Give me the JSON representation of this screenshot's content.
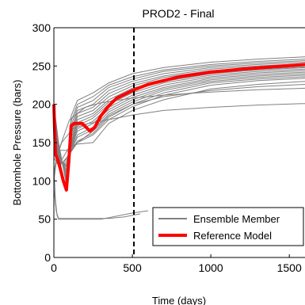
{
  "chart_data": {
    "type": "line",
    "title": "PROD2 - Final",
    "xlabel": "Time (days)",
    "ylabel": "Bottomhole Pressure  (bars)",
    "xlim": [
      0,
      1600
    ],
    "ylim": [
      0,
      300
    ],
    "x_ticks": [
      0,
      500,
      1000,
      1500
    ],
    "y_ticks": [
      0,
      50,
      100,
      150,
      200,
      250,
      300
    ],
    "x_tick_labels": [
      "0",
      "500",
      "1000",
      "1500"
    ],
    "y_tick_labels": [
      "0",
      "50",
      "100",
      "150",
      "200",
      "250",
      "300"
    ],
    "vline_x": 510,
    "legend": {
      "position": "bottom-right",
      "entries": [
        {
          "label": "Ensemble Member",
          "color": "#808080"
        },
        {
          "label": "Reference Model",
          "color": "#ff0000"
        }
      ]
    },
    "reference_model": {
      "name": "Reference Model",
      "color": "#ff0000",
      "x": [
        0,
        10,
        30,
        60,
        80,
        95,
        110,
        130,
        180,
        230,
        260,
        300,
        350,
        400,
        500,
        600,
        800,
        1000,
        1200,
        1400,
        1600
      ],
      "y": [
        200,
        135,
        125,
        100,
        88,
        125,
        172,
        175,
        175,
        165,
        170,
        185,
        198,
        208,
        218,
        226,
        236,
        242,
        246,
        249,
        252
      ]
    },
    "ensemble_members": {
      "color": "#808080",
      "series": [
        {
          "x": [
            0,
            30,
            80,
            110,
            150,
            250,
            350,
            500,
            700,
            1000,
            1300,
            1600
          ],
          "y": [
            200,
            150,
            95,
            185,
            205,
            215,
            228,
            240,
            248,
            255,
            259,
            262
          ]
        },
        {
          "x": [
            0,
            30,
            80,
            110,
            150,
            250,
            350,
            500,
            700,
            1000,
            1300,
            1600
          ],
          "y": [
            195,
            148,
            98,
            178,
            200,
            210,
            225,
            236,
            245,
            252,
            256,
            259
          ]
        },
        {
          "x": [
            0,
            30,
            80,
            110,
            150,
            250,
            350,
            500,
            700,
            1000,
            1300,
            1600
          ],
          "y": [
            190,
            145,
            100,
            172,
            196,
            205,
            222,
            233,
            243,
            250,
            254,
            257
          ]
        },
        {
          "x": [
            0,
            30,
            80,
            110,
            150,
            250,
            350,
            500,
            700,
            1000,
            1300,
            1600
          ],
          "y": [
            185,
            142,
            102,
            165,
            192,
            200,
            218,
            230,
            240,
            248,
            252,
            255
          ]
        },
        {
          "x": [
            0,
            30,
            80,
            110,
            150,
            250,
            350,
            500,
            700,
            1000,
            1300,
            1600
          ],
          "y": [
            180,
            140,
            104,
            160,
            188,
            196,
            214,
            227,
            237,
            246,
            250,
            253
          ]
        },
        {
          "x": [
            0,
            30,
            80,
            110,
            150,
            250,
            350,
            500,
            700,
            1000,
            1300,
            1600
          ],
          "y": [
            178,
            138,
            106,
            155,
            184,
            192,
            210,
            224,
            235,
            244,
            248,
            251
          ]
        },
        {
          "x": [
            0,
            30,
            80,
            110,
            150,
            250,
            350,
            500,
            700,
            1000,
            1300,
            1600
          ],
          "y": [
            175,
            136,
            110,
            150,
            180,
            188,
            206,
            221,
            232,
            242,
            246,
            249
          ]
        },
        {
          "x": [
            0,
            30,
            80,
            110,
            150,
            250,
            350,
            500,
            700,
            1000,
            1300,
            1600
          ],
          "y": [
            172,
            134,
            112,
            148,
            176,
            185,
            203,
            218,
            230,
            240,
            245,
            248
          ]
        },
        {
          "x": [
            0,
            30,
            80,
            110,
            150,
            250,
            350,
            500,
            700,
            1000,
            1300,
            1600
          ],
          "y": [
            170,
            132,
            115,
            146,
            172,
            182,
            200,
            215,
            228,
            238,
            243,
            246
          ]
        },
        {
          "x": [
            0,
            30,
            80,
            110,
            150,
            250,
            350,
            500,
            700,
            1000,
            1300,
            1600
          ],
          "y": [
            165,
            130,
            118,
            145,
            168,
            178,
            196,
            212,
            225,
            236,
            241,
            244
          ]
        },
        {
          "x": [
            0,
            30,
            80,
            110,
            150,
            250,
            350,
            500,
            700,
            1000,
            1300,
            1600
          ],
          "y": [
            160,
            128,
            120,
            143,
            165,
            175,
            193,
            209,
            222,
            234,
            239,
            242
          ]
        },
        {
          "x": [
            0,
            30,
            80,
            110,
            150,
            250,
            350,
            500,
            700,
            1000,
            1300,
            1600
          ],
          "y": [
            155,
            125,
            122,
            142,
            160,
            170,
            190,
            206,
            220,
            232,
            237,
            240
          ]
        },
        {
          "x": [
            0,
            30,
            80,
            110,
            150,
            250,
            350,
            500,
            700,
            1000,
            1300,
            1600
          ],
          "y": [
            150,
            122,
            125,
            140,
            157,
            167,
            187,
            203,
            218,
            230,
            235,
            238
          ]
        },
        {
          "x": [
            0,
            30,
            80,
            110,
            150,
            250,
            350,
            500,
            700,
            1000,
            1300,
            1600
          ],
          "y": [
            145,
            120,
            128,
            139,
            152,
            162,
            183,
            200,
            215,
            228,
            233,
            236
          ]
        },
        {
          "x": [
            0,
            30,
            80,
            110,
            150,
            250,
            350,
            500,
            700,
            1000,
            1300,
            1600
          ],
          "y": [
            140,
            118,
            130,
            138,
            150,
            160,
            180,
            197,
            212,
            225,
            231,
            234
          ]
        },
        {
          "x": [
            0,
            30,
            80,
            110,
            150,
            250,
            350,
            500,
            700,
            1000,
            1300,
            1600
          ],
          "y": [
            135,
            140,
            140,
            145,
            148,
            150,
            175,
            192,
            206,
            220,
            226,
            230
          ]
        },
        {
          "x": [
            0,
            20,
            40,
            100,
            200,
            300,
            400,
            500,
            700,
            1000,
            1300,
            1600
          ],
          "y": [
            110,
            135,
            145,
            180,
            196,
            202,
            205,
            208,
            212,
            216,
            219,
            221
          ]
        },
        {
          "x": [
            0,
            20,
            50,
            120,
            200,
            300,
            500,
            700,
            1000,
            1300,
            1600
          ],
          "y": [
            100,
            132,
            150,
            168,
            174,
            178,
            186,
            192,
            196,
            199,
            201
          ]
        },
        {
          "x": [
            0,
            30,
            80,
            150,
            250,
            350,
            500,
            700,
            1000,
            1300,
            1600
          ],
          "y": [
            130,
            120,
            138,
            150,
            165,
            185,
            200,
            210,
            218,
            223,
            226
          ]
        },
        {
          "x": [
            0,
            10,
            20,
            30,
            100,
            300,
            500,
            600
          ],
          "y": [
            120,
            75,
            55,
            50,
            50,
            50,
            58,
            61
          ]
        },
        {
          "x": [
            0,
            15,
            30,
            200,
            350,
            450,
            500,
            550
          ],
          "y": [
            90,
            60,
            51,
            51,
            51,
            53,
            55,
            57
          ]
        }
      ]
    }
  }
}
